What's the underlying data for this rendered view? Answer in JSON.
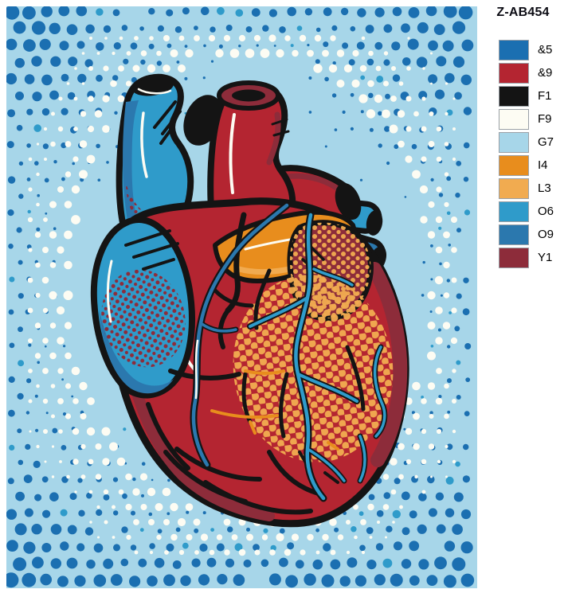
{
  "product_code": "Z-AB454",
  "artwork": {
    "subject": "pop-art-anatomical-heart",
    "background_code": "G7",
    "border_dots_code": "&5",
    "glow_dots_code": "F9"
  },
  "palette": {
    "&5": "#1b6fb1",
    "&9": "#b42531",
    "F1": "#141414",
    "F9": "#fdfcf3",
    "G7": "#a7d6e9",
    "I4": "#e88d1d",
    "L3": "#f1ab50",
    "O6": "#2f9bca",
    "O9": "#2b78ae",
    "Y1": "#8d2c3a"
  },
  "legend": {
    "items": [
      {
        "code": "&5",
        "color": "#1b6fb1"
      },
      {
        "code": "&9",
        "color": "#b42531"
      },
      {
        "code": "F1",
        "color": "#141414"
      },
      {
        "code": "F9",
        "color": "#fdfcf3"
      },
      {
        "code": "G7",
        "color": "#a7d6e9"
      },
      {
        "code": "I4",
        "color": "#e88d1d"
      },
      {
        "code": "L3",
        "color": "#f1ab50"
      },
      {
        "code": "O6",
        "color": "#2f9bca"
      },
      {
        "code": "O9",
        "color": "#2b78ae"
      },
      {
        "code": "Y1",
        "color": "#8d2c3a"
      }
    ]
  }
}
